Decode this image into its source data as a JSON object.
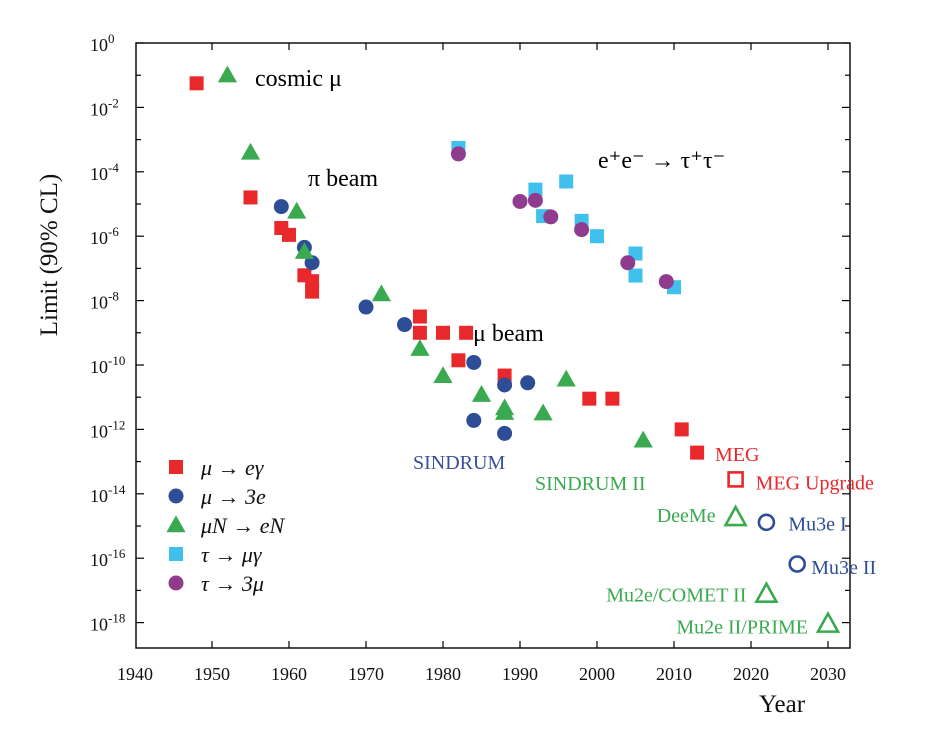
{
  "chart_data": {
    "type": "scatter",
    "xlabel": "Year",
    "ylabel": "Limit (90% CL)",
    "xlim": [
      1940,
      2032
    ],
    "ylim_log10": [
      -19,
      0
    ],
    "y_scale": "log",
    "grid": false,
    "legend_placement": "bottom-left",
    "x_ticks": [
      "1940",
      "1950",
      "1960",
      "1970",
      "1980",
      "1990",
      "2000",
      "2010",
      "2020",
      "2030"
    ],
    "y_ticks": [
      {
        "base": "10",
        "exp": "0",
        "value": 0
      },
      {
        "base": "10",
        "exp": "-2",
        "value": -2
      },
      {
        "base": "10",
        "exp": "-4",
        "value": -4
      },
      {
        "base": "10",
        "exp": "-6",
        "value": -6
      },
      {
        "base": "10",
        "exp": "-8",
        "value": -8
      },
      {
        "base": "10",
        "exp": "-10",
        "value": -10
      },
      {
        "base": "10",
        "exp": "-12",
        "value": -12
      },
      {
        "base": "10",
        "exp": "-14",
        "value": -14
      },
      {
        "base": "10",
        "exp": "-16",
        "value": -16
      },
      {
        "base": "10",
        "exp": "-18",
        "value": -18
      }
    ],
    "series": [
      {
        "name": "μ → eγ",
        "marker": "square",
        "color": "#e8282b",
        "points": [
          [
            1948,
            0.056
          ],
          [
            1955,
            1.6e-05
          ],
          [
            1959,
            1.8e-06
          ],
          [
            1960,
            1.1e-06
          ],
          [
            1962,
            6.1e-08
          ],
          [
            1963,
            4e-08
          ],
          [
            1963,
            1.9e-08
          ],
          [
            1977,
            3.2e-09
          ],
          [
            1977,
            1e-09
          ],
          [
            1980,
            1e-09
          ],
          [
            1983,
            1e-09
          ],
          [
            1982,
            1.4e-10
          ],
          [
            1988,
            4.7e-11
          ],
          [
            1999,
            9e-12
          ],
          [
            2002,
            9e-12
          ],
          [
            2011,
            1e-12
          ],
          [
            2013,
            1.9e-13
          ]
        ]
      },
      {
        "name": "μ → 3e",
        "marker": "circle",
        "color": "#2e4d97",
        "points": [
          [
            1959,
            8.3e-06
          ],
          [
            1962,
            4.5e-07
          ],
          [
            1963,
            1.5e-07
          ],
          [
            1970,
            6.3e-09
          ],
          [
            1975,
            1.8e-09
          ],
          [
            1984,
            1.2e-10
          ],
          [
            1988,
            2.4e-11
          ],
          [
            1991,
            2.8e-11
          ],
          [
            1984,
            1.9e-12
          ],
          [
            1988,
            7.5e-13
          ]
        ]
      },
      {
        "name": "μN → eN",
        "marker": "triangle",
        "color": "#3aaa50",
        "points": [
          [
            1952,
            0.1
          ],
          [
            1955,
            0.0004
          ],
          [
            1961,
            5.9e-06
          ],
          [
            1962,
            3.3e-07
          ],
          [
            1972,
            1.6e-08
          ],
          [
            1977,
            3.2e-10
          ],
          [
            1980,
            4.6e-11
          ],
          [
            1985,
            1.2e-11
          ],
          [
            1988,
            4.6e-12
          ],
          [
            1988,
            3.3e-12
          ],
          [
            1993,
            3.2e-12
          ],
          [
            1996,
            3.6e-11
          ],
          [
            2006,
            4.6e-13
          ]
        ]
      },
      {
        "name": "τ → μγ",
        "marker": "square",
        "color": "#40c0ec",
        "points": [
          [
            1982,
            0.00055
          ],
          [
            1992,
            2.8e-05
          ],
          [
            1993,
            4.2e-06
          ],
          [
            1996,
            5e-05
          ],
          [
            1998,
            3e-06
          ],
          [
            2000,
            1e-06
          ],
          [
            2005,
            2.9e-07
          ],
          [
            2005,
            6e-08
          ],
          [
            2010,
            2.6e-08
          ]
        ]
      },
      {
        "name": "τ → 3μ",
        "marker": "circle",
        "color": "#8f3c8f",
        "points": [
          [
            1982,
            0.00036
          ],
          [
            1990,
            1.2e-05
          ],
          [
            1992,
            1.3e-05
          ],
          [
            1994,
            4e-06
          ],
          [
            1998,
            1.6e-06
          ],
          [
            2004,
            1.5e-07
          ],
          [
            2009,
            3.9e-08
          ]
        ]
      }
    ],
    "future_points": [
      {
        "label": "MEG Upgrade",
        "marker": "open-square",
        "color": "#e8282b",
        "x": 2018,
        "y": 2.8e-14
      },
      {
        "label": "DeeMe",
        "marker": "open-triangle",
        "color": "#3aaa50",
        "x": 2018,
        "y": 1.9e-15
      },
      {
        "label": "Mu3e I",
        "marker": "open-circle",
        "color": "#2e4d97",
        "x": 2022,
        "y": 1.3e-15
      },
      {
        "label": "Mu3e II",
        "marker": "open-circle",
        "color": "#2e4d97",
        "x": 2026,
        "y": 6.6e-17
      },
      {
        "label": "Mu2e/COMET II",
        "marker": "open-triangle",
        "color": "#3aaa50",
        "x": 2022,
        "y": 7.9e-18
      },
      {
        "label": "Mu2e II/PRIME",
        "marker": "open-triangle",
        "color": "#3aaa50",
        "x": 2030,
        "y": 9.3e-19
      }
    ],
    "annotations": [
      {
        "text": "cosmic μ",
        "color": "#000000"
      },
      {
        "text": "π beam",
        "color": "#000000"
      },
      {
        "text": "μ beam",
        "color": "#000000"
      },
      {
        "text": "e⁺e⁻ → τ⁺τ⁻",
        "color": "#000000"
      },
      {
        "text": "SINDRUM",
        "color": "#3a4f9a"
      },
      {
        "text": "SINDRUM II",
        "color": "#3aaa50"
      },
      {
        "text": "MEG",
        "color": "#e8282b"
      }
    ]
  }
}
